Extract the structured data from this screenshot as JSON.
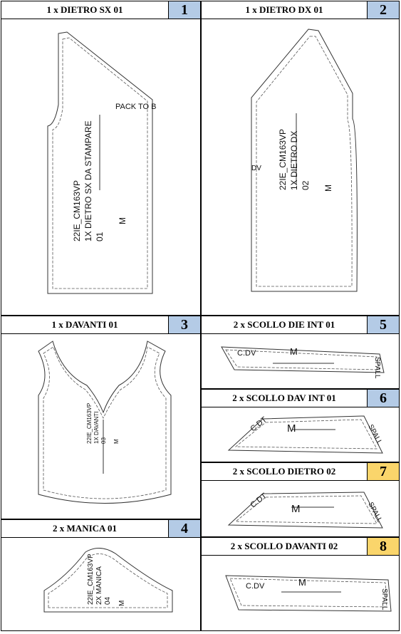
{
  "pieces": [
    {
      "id": "p1",
      "header": "1 x DIETRO SX 01",
      "number": "1",
      "color": "#b4cbe6",
      "texts": {
        "code": "22IE_CM163VP",
        "name": "1X DIETRO SX DA STAMPARE",
        "num": "01",
        "size": "M",
        "note": "PACK TO B"
      }
    },
    {
      "id": "p2",
      "header": "1 x DIETRO DX 01",
      "number": "2",
      "color": "#b4cbe6",
      "texts": {
        "code": "22IE_CM163VP",
        "name": "1X DIETRO DX",
        "num": "02",
        "size": "M",
        "note": "DV"
      }
    },
    {
      "id": "p3",
      "header": "1 x DAVANTI 01",
      "number": "3",
      "color": "#b4cbe6",
      "texts": {
        "code": "22IE_CM163VP",
        "name": "1X DAVANTI",
        "num": "03",
        "size": "M"
      }
    },
    {
      "id": "p4",
      "header": "2 x MANICA 01",
      "number": "4",
      "color": "#b4cbe6",
      "texts": {
        "code": "22IE_CM163VP",
        "name": "2X MANICA",
        "num": "04",
        "size": "M"
      }
    },
    {
      "id": "p5",
      "header": "2 x SCOLLO DIE INT 01",
      "number": "5",
      "color": "#b4cbe6",
      "texts": {
        "left": "C.DV",
        "size": "M",
        "right": "SPALL"
      }
    },
    {
      "id": "p6",
      "header": "2 x SCOLLO DAV INT 01",
      "number": "6",
      "color": "#b4cbe6",
      "texts": {
        "left": "C.DT",
        "size": "M",
        "right": "SPALL"
      }
    },
    {
      "id": "p7",
      "header": "2 x SCOLLO DIETRO 02",
      "number": "7",
      "color": "#fad56b",
      "texts": {
        "left": "C.DT",
        "size": "M",
        "right": "SPALL"
      }
    },
    {
      "id": "p8",
      "header": "2 x SCOLLO DAVANTI 02",
      "number": "8",
      "color": "#fad56b",
      "texts": {
        "left": "C.DV",
        "size": "M",
        "right": "SPALL"
      }
    }
  ]
}
